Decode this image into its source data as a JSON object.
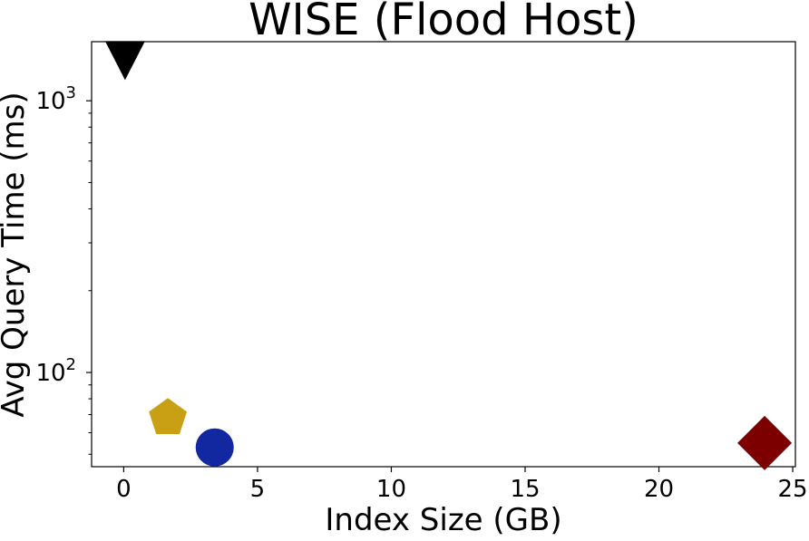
{
  "chart_data": {
    "type": "scatter",
    "title": "WISE (Flood Host)",
    "xlabel": "Index Size (GB)",
    "ylabel": "Avg Query Time (ms)",
    "xlim": [
      -1.2,
      25.1
    ],
    "ylim": [
      45,
      1650
    ],
    "y_scale": "log",
    "x_ticks": [
      {
        "value": 0,
        "label": "0"
      },
      {
        "value": 5,
        "label": "5"
      },
      {
        "value": 10,
        "label": "10"
      },
      {
        "value": 15,
        "label": "15"
      },
      {
        "value": 20,
        "label": "20"
      },
      {
        "value": 25,
        "label": "25"
      }
    ],
    "y_ticks": [
      {
        "value": 100,
        "base": "10",
        "exp": "2"
      },
      {
        "value": 1000,
        "base": "10",
        "exp": "3"
      }
    ],
    "grid": false,
    "legend": "none",
    "points": [
      {
        "x": 0.05,
        "y": 1390,
        "marker": "triangle-down",
        "color": "#000000"
      },
      {
        "x": 1.65,
        "y": 68,
        "marker": "pentagon",
        "color": "#c9a014"
      },
      {
        "x": 3.4,
        "y": 53,
        "marker": "circle",
        "color": "#1228a0"
      },
      {
        "x": 23.95,
        "y": 55,
        "marker": "diamond",
        "color": "#7d0000"
      }
    ]
  }
}
